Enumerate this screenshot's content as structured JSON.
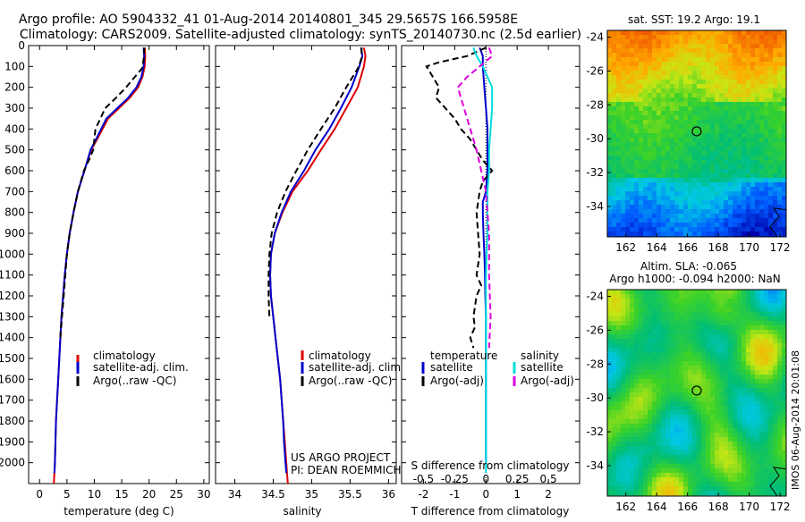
{
  "title_line1": "Argo profile: AO 5904332_41 01-Aug-2014 20140801_345 29.5657S 166.5958E",
  "title_line2": "Climatology: CARS2009. Satellite-adjusted climatology: synTS_20140730.nc (2.5d earlier)",
  "credit_line1": "US ARGO PROJECT",
  "credit_line2": "PI: DEAN ROEMMICH",
  "sst_title": "sat. SST: 19.2 Argo: 19.1",
  "sla_title1": "Altim. SLA: -0.065",
  "sla_title2": "Argo h1000: -0.094 h2000: NaN",
  "watermark": "IMOS 06-Aug-2014 20:01:08",
  "colors": {
    "climatology": "#dd0000",
    "satellite": "#0000cc",
    "argo": "#000000",
    "sal_satellite": "#00dddd",
    "sal_argo": "#dd00dd"
  },
  "chart_data": [
    {
      "type": "line",
      "id": "temperature",
      "xlabel": "temperature (deg C)",
      "ylabel": "",
      "xlim": [
        -2,
        31
      ],
      "ylim": [
        2100,
        0
      ],
      "y_inverted": true,
      "xticks": [
        0,
        5,
        10,
        15,
        20,
        25,
        30
      ],
      "yticks": [
        0,
        100,
        200,
        300,
        400,
        500,
        600,
        700,
        800,
        900,
        1000,
        1100,
        1200,
        1300,
        1400,
        1500,
        1600,
        1700,
        1800,
        1900,
        2000
      ],
      "legend": [
        "climatology",
        "satellite-adj. clim.",
        "Argo(..raw -QC)"
      ],
      "legend_position": "lower-center",
      "series": [
        {
          "name": "climatology",
          "color": "#dd0000",
          "dash": "",
          "x": [
            19.2,
            19.3,
            19.2,
            18.8,
            18.0,
            16.5,
            14.5,
            12.5,
            10.5,
            9.4,
            8.2,
            7.0,
            6.2,
            5.5,
            5.0,
            4.6,
            4.3,
            4.0,
            3.8,
            3.6,
            3.4,
            3.2,
            3.0,
            2.9,
            2.8,
            2.7,
            2.6
          ],
          "y": [
            10,
            50,
            100,
            150,
            200,
            250,
            300,
            350,
            450,
            500,
            600,
            700,
            800,
            900,
            1000,
            1100,
            1200,
            1300,
            1400,
            1500,
            1600,
            1700,
            1800,
            1900,
            2000,
            2050,
            2100
          ]
        },
        {
          "name": "satellite-adj. clim.",
          "color": "#0000cc",
          "dash": "",
          "x": [
            19.0,
            19.1,
            19.0,
            18.6,
            17.7,
            16.2,
            14.2,
            12.2,
            10.3,
            9.3,
            8.2,
            7.0,
            6.2,
            5.5,
            5.0,
            4.6,
            4.3,
            4.0,
            3.8,
            3.6,
            3.4,
            3.2,
            3.0,
            2.9,
            2.8,
            2.7
          ],
          "y": [
            10,
            50,
            100,
            150,
            200,
            250,
            300,
            350,
            450,
            500,
            600,
            700,
            800,
            900,
            1000,
            1100,
            1200,
            1300,
            1400,
            1500,
            1600,
            1700,
            1800,
            1900,
            2000,
            2050
          ]
        },
        {
          "name": "Argo(..raw -QC)",
          "color": "#000000",
          "dash": "7,4",
          "x": [
            19.1,
            19.1,
            18.7,
            17.4,
            15.8,
            14.0,
            12.0,
            10.2,
            9.8,
            9.0,
            8.1,
            7.0,
            6.2,
            5.5,
            5.0,
            4.7,
            4.4,
            4.1,
            3.8
          ],
          "y": [
            10,
            50,
            110,
            150,
            200,
            250,
            300,
            400,
            500,
            550,
            600,
            700,
            800,
            900,
            1000,
            1100,
            1200,
            1300,
            1400
          ]
        }
      ]
    },
    {
      "type": "line",
      "id": "salinity",
      "xlabel": "salinity",
      "ylabel": "",
      "xlim": [
        33.75,
        36.1
      ],
      "ylim": [
        2100,
        0
      ],
      "y_inverted": true,
      "xticks": [
        34,
        34.5,
        35,
        35.5,
        36
      ],
      "legend": [
        "climatology",
        "satellite-adj. clim.",
        "Argo(..raw -QC)"
      ],
      "legend_position": "lower-right",
      "series": [
        {
          "name": "climatology",
          "color": "#dd0000",
          "dash": "",
          "x": [
            35.68,
            35.7,
            35.68,
            35.6,
            35.45,
            35.3,
            35.12,
            34.95,
            34.75,
            34.62,
            34.52,
            34.47,
            34.46,
            34.47,
            34.5,
            34.53,
            34.56,
            34.59,
            34.61,
            34.63,
            34.65,
            34.67,
            34.68,
            34.69
          ],
          "y": [
            10,
            50,
            100,
            200,
            300,
            400,
            500,
            600,
            700,
            800,
            900,
            1000,
            1100,
            1200,
            1300,
            1400,
            1500,
            1600,
            1700,
            1800,
            1900,
            2000,
            2050,
            2100
          ]
        },
        {
          "name": "satellite-adj. clim.",
          "color": "#0000cc",
          "dash": "",
          "x": [
            35.64,
            35.66,
            35.62,
            35.52,
            35.38,
            35.23,
            35.05,
            34.9,
            34.73,
            34.61,
            34.52,
            34.47,
            34.46,
            34.47,
            34.5,
            34.53,
            34.56,
            34.59,
            34.61,
            34.63,
            34.64,
            34.66,
            34.67
          ],
          "y": [
            10,
            50,
            100,
            200,
            300,
            400,
            500,
            600,
            700,
            800,
            900,
            1000,
            1100,
            1200,
            1300,
            1400,
            1500,
            1600,
            1700,
            1800,
            1900,
            2000,
            2050
          ]
        },
        {
          "name": "Argo(..raw -QC)",
          "color": "#000000",
          "dash": "7,4",
          "x": [
            35.65,
            35.65,
            35.6,
            35.45,
            35.3,
            35.12,
            34.95,
            34.8,
            34.66,
            34.55,
            34.48,
            34.45,
            34.44,
            34.44,
            34.45
          ],
          "y": [
            10,
            60,
            110,
            200,
            300,
            400,
            500,
            600,
            700,
            800,
            900,
            1000,
            1100,
            1200,
            1300
          ]
        }
      ]
    },
    {
      "type": "line",
      "id": "difference",
      "xlabel": "T difference from climatology",
      "xlabel2": "S difference from climatology",
      "xlim": [
        -2.7,
        3.0
      ],
      "ylim": [
        2100,
        0
      ],
      "y_inverted": true,
      "xticks": [
        -2,
        -1,
        0,
        1,
        2
      ],
      "xticks2_labels": [
        "-0.5",
        "-0.25",
        "0",
        "0.25",
        "0.5"
      ],
      "xticks2_values": [
        -2,
        -1,
        0,
        1,
        2
      ],
      "legend_headers": [
        "temperature",
        "salinity"
      ],
      "legend": [
        "satellite",
        "Argo(-adj)",
        "satellite",
        "Argo(-adj)"
      ],
      "series": [
        {
          "name": "satellite",
          "color": "#0000cc",
          "dash": "",
          "x": [
            -0.2,
            -0.1,
            -0.1,
            -0.05,
            0.0,
            0.05,
            0.05,
            0.05,
            0.0,
            -0.1,
            -0.1,
            -0.08,
            -0.05,
            -0.03,
            -0.02,
            0.0,
            0.0,
            0.0,
            0.0,
            0.0,
            0.0
          ],
          "y": [
            10,
            50,
            100,
            200,
            300,
            400,
            500,
            600,
            700,
            750,
            800,
            900,
            1000,
            1100,
            1200,
            1300,
            1400,
            1500,
            1600,
            1800,
            2000
          ]
        },
        {
          "name": "Argo(-adj)",
          "color": "#000000",
          "dash": "7,4",
          "x": [
            0.0,
            -0.6,
            -1.5,
            -1.9,
            -1.7,
            -1.5,
            -1.6,
            -1.3,
            -1.0,
            -0.8,
            -0.5,
            -0.3,
            -0.1,
            0.2,
            -0.1,
            -0.2,
            -0.3,
            -0.25,
            -0.2,
            -0.3,
            -0.15,
            -0.3,
            -0.4,
            -0.35,
            -0.5,
            -0.4
          ],
          "y": [
            10,
            50,
            80,
            100,
            150,
            200,
            250,
            300,
            350,
            400,
            450,
            500,
            550,
            600,
            650,
            700,
            800,
            900,
            1000,
            1100,
            1150,
            1200,
            1300,
            1350,
            1400,
            1450
          ]
        },
        {
          "name": "satellite",
          "color": "#00dddd",
          "dash": "",
          "x": [
            -0.4,
            -0.3,
            -0.1,
            0.2,
            0.2,
            0.15,
            0.1,
            0.1,
            0.05,
            0.05,
            0.05,
            0.02,
            0.0,
            0.0,
            0.0,
            0.0,
            0.0,
            0.0
          ],
          "y": [
            10,
            50,
            100,
            200,
            300,
            400,
            500,
            600,
            700,
            800,
            900,
            1000,
            1100,
            1300,
            1500,
            1700,
            1900,
            2050
          ]
        },
        {
          "name": "Argo(-adj)",
          "color": "#dd00dd",
          "dash": "7,4",
          "x": [
            0.1,
            0.2,
            -0.2,
            -0.6,
            -0.9,
            -0.8,
            -0.7,
            -0.6,
            -0.5,
            -0.3,
            -0.15,
            0.0,
            0.05,
            0.1,
            0.1,
            0.15,
            0.1
          ],
          "y": [
            10,
            50,
            100,
            150,
            200,
            250,
            300,
            350,
            400,
            500,
            600,
            700,
            800,
            900,
            1100,
            1300,
            1450
          ]
        }
      ]
    },
    {
      "type": "heatmap",
      "id": "sst_map",
      "title": "sat. SST: 19.2 Argo: 19.1",
      "xlim": [
        160.8,
        172.4
      ],
      "ylim": [
        -35.8,
        -23.6
      ],
      "xticks": [
        162,
        164,
        166,
        168,
        170,
        172
      ],
      "yticks": [
        -24,
        -26,
        -28,
        -30,
        -32,
        -34
      ],
      "marker": {
        "lon": 166.5958,
        "lat": -29.5657
      }
    },
    {
      "type": "heatmap",
      "id": "sla_map",
      "title": "Altim. SLA: -0.065",
      "xlim": [
        160.8,
        172.4
      ],
      "ylim": [
        -35.8,
        -23.6
      ],
      "xticks": [
        162,
        164,
        166,
        168,
        170,
        172
      ],
      "yticks": [
        -24,
        -26,
        -28,
        -30,
        -32,
        -34
      ],
      "marker": {
        "lon": 166.5958,
        "lat": -29.5657
      }
    }
  ]
}
